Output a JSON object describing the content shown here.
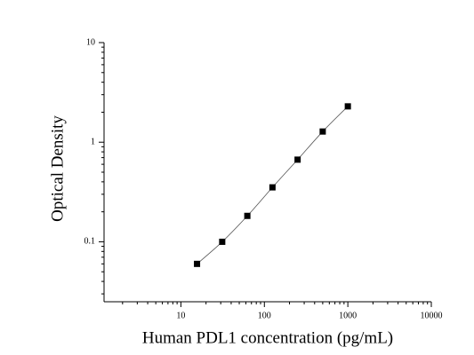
{
  "chart_data": {
    "type": "scatter",
    "x_label": "Human PDL1 concentration (pg/mL)",
    "y_label": "Optical Density",
    "x_scale": "log",
    "y_scale": "log",
    "xlim": [
      1.2,
      10000
    ],
    "ylim": [
      0.025,
      10
    ],
    "xticks": [
      10,
      100,
      1000,
      10000
    ],
    "yticks": [
      0.1,
      1,
      10
    ],
    "series": [
      {
        "color": "#000000",
        "x": [
          15.6,
          31.25,
          62.5,
          125,
          250,
          500,
          1000
        ],
        "values": [
          0.06,
          0.1,
          0.182,
          0.352,
          0.668,
          1.28,
          2.29
        ]
      }
    ]
  }
}
